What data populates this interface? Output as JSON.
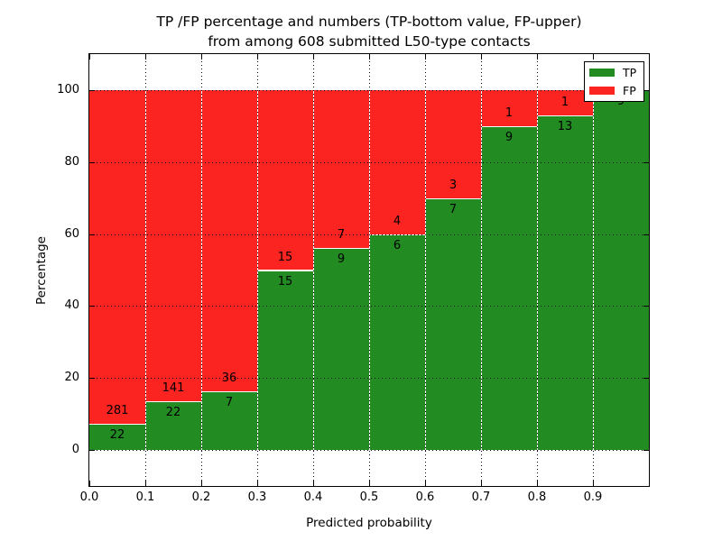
{
  "figure": {
    "title_line1": "TP /FP percentage and numbers (TP-bottom value, FP-upper)",
    "title_line2": "from among 608 submitted L50-type contacts",
    "xlabel": "Predicted probability",
    "ylabel": "Percentage"
  },
  "legend": {
    "position": "upper right",
    "items": [
      {
        "label": "TP",
        "color": "#228b22",
        "swatch": "green-swatch"
      },
      {
        "label": "FP",
        "color": "#fb2420",
        "swatch": "red-swatch"
      }
    ]
  },
  "colors": {
    "tp_green": "#228b22",
    "fp_red": "#fb2420",
    "axis": "#000000",
    "background": "#ffffff"
  },
  "chart_data": {
    "type": "bar",
    "stacked": true,
    "normalized_to_percent": true,
    "title": "TP /FP percentage and numbers (TP-bottom value, FP-upper) from among 608 submitted L50-type contacts",
    "xlabel": "Predicted probability",
    "ylabel": "Percentage",
    "xlim": [
      0.0,
      1.0
    ],
    "ylim": [
      -10,
      110
    ],
    "grid": true,
    "legend_position": "upper right",
    "bin_width": 0.1,
    "categories": [
      "0.0-0.1",
      "0.1-0.2",
      "0.2-0.3",
      "0.3-0.4",
      "0.4-0.5",
      "0.5-0.6",
      "0.6-0.7",
      "0.7-0.8",
      "0.8-0.9",
      "0.9-1.0"
    ],
    "x_tick_labels": [
      "0.0",
      "0.1",
      "0.2",
      "0.3",
      "0.4",
      "0.5",
      "0.6",
      "0.7",
      "0.8",
      "0.9"
    ],
    "y_tick_values": [
      0,
      20,
      40,
      60,
      80,
      100
    ],
    "series": [
      {
        "name": "TP",
        "color": "#228b22",
        "counts": [
          22,
          22,
          7,
          15,
          9,
          6,
          7,
          9,
          13,
          9
        ]
      },
      {
        "name": "FP",
        "color": "#fb2420",
        "counts": [
          281,
          141,
          36,
          15,
          7,
          4,
          3,
          1,
          1,
          0
        ]
      }
    ],
    "tp_percent_heights": [
      7.3,
      13.5,
      16.3,
      50.0,
      56.3,
      60.0,
      70.0,
      90.0,
      92.9,
      100.0
    ],
    "total_contacts": 608
  }
}
